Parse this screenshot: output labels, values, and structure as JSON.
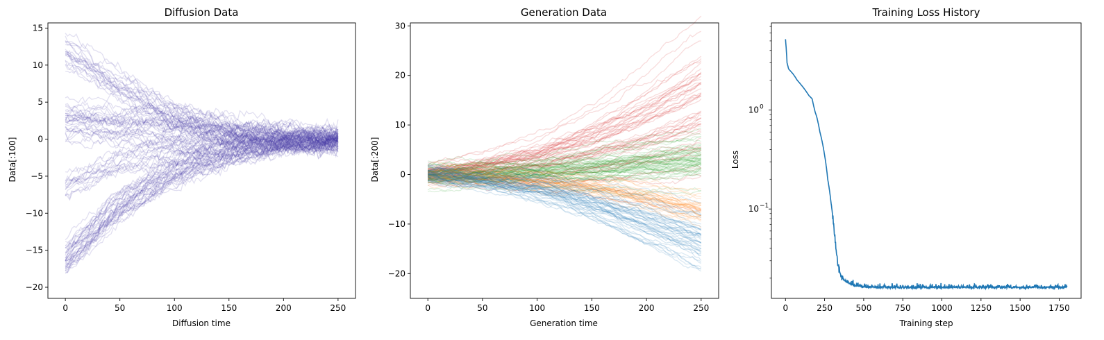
{
  "chart_data": [
    {
      "type": "line",
      "title": "Diffusion Data",
      "xlabel": "Diffusion time",
      "ylabel": "Data[:100]",
      "xlim": [
        -16,
        266
      ],
      "ylim": [
        -21.5,
        15.7
      ],
      "xticks": [
        0,
        50,
        100,
        150,
        200,
        250
      ],
      "yticks": [
        -20,
        -15,
        -10,
        -5,
        0,
        5,
        10,
        15
      ],
      "color": "#4b3fa8",
      "opacity": 0.16,
      "series": [
        {
          "count": 20,
          "x": [
            0,
            50,
            100,
            150,
            200,
            250
          ],
          "y": [
            12,
            7.5,
            3.5,
            1.2,
            0.2,
            0
          ]
        },
        {
          "count": 30,
          "x": [
            0,
            50,
            100,
            150,
            200,
            250
          ],
          "y": [
            2,
            1.5,
            1,
            0.5,
            0.2,
            0
          ]
        },
        {
          "count": 15,
          "x": [
            0,
            50,
            100,
            150,
            200,
            250
          ],
          "y": [
            -6.5,
            -3.5,
            -2,
            -1,
            -0.5,
            -0.3
          ]
        },
        {
          "count": 35,
          "x": [
            0,
            50,
            100,
            150,
            200,
            250
          ],
          "y": [
            -16.5,
            -9,
            -4.5,
            -2,
            -0.8,
            -0.3
          ]
        }
      ]
    },
    {
      "type": "line",
      "title": "Generation Data",
      "xlabel": "Generation time",
      "ylabel": "Data[:200]",
      "xlim": [
        -16,
        266
      ],
      "ylim": [
        -25,
        30.6
      ],
      "xticks": [
        0,
        50,
        100,
        150,
        200,
        250
      ],
      "yticks": [
        -20,
        -10,
        0,
        10,
        20,
        30
      ],
      "opacity": 0.16,
      "series": [
        {
          "color": "#d62728",
          "count": 55,
          "x": [
            0,
            50,
            100,
            150,
            200,
            250
          ],
          "y": [
            0,
            1,
            2.5,
            5,
            8.5,
            13
          ],
          "spread": [
            1,
            1.5,
            2.5,
            4,
            6,
            8
          ]
        },
        {
          "color": "#2ca02c",
          "count": 55,
          "x": [
            0,
            50,
            100,
            150,
            200,
            250
          ],
          "y": [
            0,
            0.3,
            0.8,
            1.5,
            2.5,
            3.5
          ],
          "spread": [
            1,
            1,
            1,
            1.5,
            1.8,
            2
          ]
        },
        {
          "color": "#ff7f0e",
          "count": 30,
          "x": [
            0,
            50,
            100,
            150,
            200,
            250
          ],
          "y": [
            0,
            -0.5,
            -1.5,
            -2.5,
            -4.5,
            -7
          ],
          "spread": [
            1,
            1,
            1,
            1,
            1.5,
            2
          ]
        },
        {
          "color": "#1f77b4",
          "count": 45,
          "x": [
            0,
            50,
            100,
            150,
            200,
            250
          ],
          "y": [
            0,
            -1.5,
            -3,
            -6,
            -10,
            -14
          ],
          "spread": [
            1,
            1,
            1.5,
            2,
            3,
            3.5
          ]
        }
      ]
    },
    {
      "type": "line",
      "title": "Training Loss History",
      "xlabel": "Training step",
      "ylabel": "Loss",
      "xlim": [
        -90,
        1890
      ],
      "ylim": [
        0.0125,
        7.6
      ],
      "yscale": "log",
      "xticks": [
        0,
        250,
        500,
        750,
        1000,
        1250,
        1500,
        1750
      ],
      "color": "#1f77b4",
      "series": [
        {
          "name": "",
          "x": [
            0,
            10,
            20,
            30,
            50,
            75,
            100,
            125,
            150,
            170,
            180,
            190,
            200,
            220,
            250,
            270,
            290,
            300,
            310,
            320,
            330,
            340,
            350,
            370,
            400,
            450,
            500,
            600,
            750,
            1000,
            1250,
            1500,
            1800
          ],
          "y": [
            5.2,
            3,
            2.6,
            2.5,
            2.3,
            2.0,
            1.8,
            1.6,
            1.4,
            1.3,
            1.1,
            0.95,
            0.85,
            0.6,
            0.35,
            0.2,
            0.12,
            0.09,
            0.065,
            0.045,
            0.032,
            0.025,
            0.021,
            0.019,
            0.0175,
            0.0165,
            0.016,
            0.0158,
            0.0158,
            0.0158,
            0.0158,
            0.0158,
            0.0158
          ]
        }
      ]
    }
  ]
}
